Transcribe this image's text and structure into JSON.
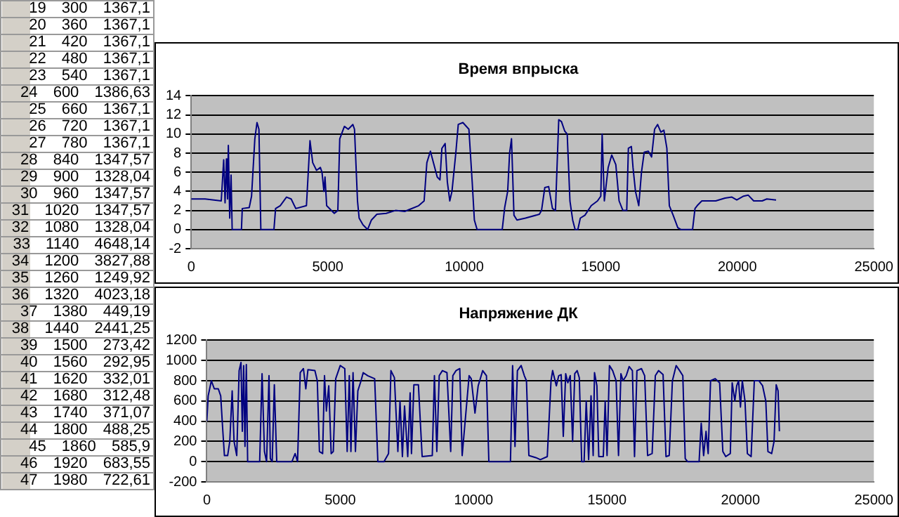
{
  "chart_data": [
    {
      "type": "line",
      "title": "Время впрыска",
      "xlim": [
        0,
        25000
      ],
      "xticks": [
        0,
        5000,
        10000,
        15000,
        20000,
        25000
      ],
      "ylim": [
        -2,
        14
      ],
      "yticks": [
        -2,
        0,
        2,
        4,
        6,
        8,
        10,
        12,
        14
      ],
      "grid": "y",
      "legend": false,
      "marker": "none",
      "line_style": "solid",
      "series": [
        {
          "color": "#000080",
          "x": [
            0,
            510,
            1100,
            1190,
            1240,
            1290,
            1330,
            1360,
            1410,
            1460,
            1500,
            1560,
            1840,
            1870,
            2125,
            2210,
            2330,
            2410,
            2480,
            2550,
            3030,
            3090,
            3260,
            3490,
            3660,
            3830,
            4220,
            4350,
            4450,
            4590,
            4730,
            4790,
            4860,
            4900,
            4960,
            5240,
            5370,
            5440,
            5610,
            5750,
            5920,
            5980,
            6090,
            6150,
            6290,
            6460,
            6600,
            6800,
            7140,
            7480,
            7820,
            7990,
            8330,
            8530,
            8630,
            8760,
            8870,
            9010,
            9110,
            9180,
            9300,
            9380,
            9470,
            9550,
            9690,
            9780,
            9950,
            10170,
            10290,
            10370,
            10470,
            11390,
            11480,
            11590,
            11660,
            11730,
            11820,
            11930,
            12240,
            12750,
            12830,
            12950,
            13090,
            13230,
            13340,
            13460,
            13560,
            13680,
            13770,
            13870,
            13970,
            14060,
            14160,
            14250,
            14420,
            14650,
            14880,
            15000,
            15050,
            15130,
            15270,
            15400,
            15550,
            15670,
            15810,
            15950,
            16010,
            16120,
            16180,
            16270,
            16390,
            16490,
            16590,
            16740,
            16860,
            16970,
            17080,
            17200,
            17310,
            17420,
            17510,
            17650,
            17820,
            17940,
            18360,
            18450,
            18530,
            18700,
            19210,
            19550,
            19800,
            19980,
            20230,
            20400,
            20600,
            20910,
            21080,
            21420
          ],
          "values": [
            3.2,
            3.2,
            3,
            7.3,
            2.8,
            7.4,
            3.2,
            8.8,
            1.2,
            5.7,
            0,
            0,
            0,
            2.2,
            2.3,
            3.5,
            9.5,
            11.2,
            10.5,
            0,
            0,
            2.2,
            2.5,
            3.4,
            3.2,
            2.2,
            2.5,
            9.3,
            7,
            6.2,
            6.5,
            6,
            4,
            5.5,
            2.5,
            1.7,
            2,
            9.5,
            10.8,
            10.5,
            11,
            10.5,
            3,
            1.2,
            0.5,
            0,
            1,
            1.6,
            1.7,
            2,
            1.9,
            2.1,
            2.5,
            3,
            7,
            8.2,
            7,
            5.5,
            5.2,
            8.5,
            9,
            5,
            3,
            4,
            8,
            11,
            11.2,
            10.5,
            5,
            1,
            0,
            0,
            2.3,
            4,
            8,
            9.5,
            1.5,
            1,
            1.2,
            1.6,
            2,
            4.4,
            4.5,
            2.2,
            2,
            11.5,
            11.3,
            10.3,
            10,
            3,
            1,
            0,
            0,
            1.2,
            1.5,
            2.5,
            3,
            3.5,
            10,
            3,
            6.5,
            7.8,
            6.8,
            3,
            2,
            2,
            8.5,
            8.7,
            6.5,
            4,
            2.5,
            6,
            8.1,
            8.2,
            7.6,
            10.5,
            11,
            10.2,
            10.4,
            8.5,
            2.5,
            1.5,
            0.2,
            0,
            0,
            2.2,
            2.5,
            3,
            3,
            3.3,
            3.4,
            3.1,
            3.5,
            3.6,
            3,
            3,
            3.2,
            3.1
          ]
        }
      ]
    },
    {
      "type": "line",
      "title": "Напряжение ДК",
      "xlim": [
        0,
        25000
      ],
      "xticks": [
        0,
        5000,
        10000,
        15000,
        20000,
        25000
      ],
      "ylim": [
        -200,
        1200
      ],
      "yticks": [
        -200,
        0,
        200,
        400,
        600,
        800,
        1000,
        1200
      ],
      "grid": "y",
      "legend": false,
      "marker": "none",
      "line_style": "solid",
      "series": [
        {
          "color": "#000080",
          "x": [
            0,
            50,
            170,
            280,
            430,
            520,
            600,
            660,
            780,
            860,
            950,
            1020,
            1120,
            1210,
            1280,
            1330,
            1380,
            1430,
            1480,
            1530,
            1640,
            1980,
            2070,
            2160,
            2240,
            2330,
            2380,
            2450,
            2530,
            2620,
            3190,
            3310,
            3400,
            3500,
            3620,
            3710,
            3790,
            4050,
            4140,
            4220,
            4340,
            4410,
            4480,
            4570,
            4660,
            4740,
            4830,
            5000,
            5170,
            5260,
            5340,
            5400,
            5480,
            5570,
            5660,
            5780,
            5860,
            6030,
            6290,
            6410,
            6640,
            6810,
            6900,
            7030,
            7160,
            7240,
            7330,
            7410,
            7530,
            7620,
            7670,
            7760,
            7930,
            8070,
            8450,
            8530,
            8620,
            8710,
            8830,
            9000,
            9140,
            9220,
            9340,
            9480,
            9570,
            9830,
            9910,
            10050,
            10170,
            10340,
            10480,
            10570,
            10690,
            11380,
            11460,
            11550,
            11640,
            11780,
            11900,
            11980,
            12070,
            12330,
            12500,
            12760,
            12900,
            12960,
            13100,
            13190,
            13280,
            13360,
            13450,
            13530,
            13620,
            13710,
            13790,
            13880,
            13960,
            14050,
            14140,
            14220,
            14310,
            14400,
            14480,
            14530,
            14620,
            14690,
            14860,
            14930,
            15000,
            15090,
            15210,
            15340,
            15430,
            15520,
            15600,
            15720,
            15830,
            15950,
            16030,
            16120,
            16290,
            16410,
            16520,
            16690,
            16810,
            16930,
            17100,
            17210,
            17330,
            17450,
            17590,
            17720,
            17840,
            17930,
            18020,
            18450,
            18530,
            18620,
            18710,
            18790,
            18880,
            19050,
            19220,
            19340,
            19450,
            19620,
            19690,
            19790,
            19860,
            19930,
            20000,
            20070,
            20170,
            20260,
            20400,
            20520,
            20690,
            20830,
            20950,
            21030,
            21170,
            21260,
            21340,
            21410,
            21460
          ],
          "values": [
            400,
            650,
            800,
            720,
            720,
            650,
            300,
            60,
            60,
            200,
            700,
            200,
            60,
            900,
            980,
            300,
            950,
            150,
            960,
            0,
            0,
            0,
            870,
            100,
            0,
            850,
            30,
            0,
            760,
            0,
            0,
            80,
            0,
            880,
            920,
            720,
            910,
            900,
            800,
            100,
            80,
            850,
            500,
            750,
            80,
            100,
            820,
            950,
            920,
            100,
            850,
            100,
            880,
            100,
            700,
            800,
            880,
            850,
            820,
            0,
            0,
            80,
            900,
            830,
            100,
            600,
            50,
            550,
            50,
            680,
            80,
            760,
            760,
            50,
            60,
            850,
            100,
            850,
            900,
            880,
            100,
            850,
            900,
            920,
            60,
            850,
            820,
            480,
            750,
            900,
            850,
            0,
            0,
            0,
            950,
            150,
            900,
            950,
            850,
            800,
            60,
            40,
            20,
            50,
            800,
            900,
            750,
            850,
            860,
            250,
            870,
            780,
            850,
            200,
            870,
            900,
            830,
            0,
            0,
            600,
            20,
            650,
            60,
            880,
            750,
            50,
            50,
            600,
            60,
            950,
            900,
            800,
            60,
            870,
            800,
            850,
            940,
            900,
            50,
            900,
            920,
            850,
            60,
            80,
            850,
            900,
            860,
            50,
            60,
            800,
            950,
            900,
            850,
            30,
            0,
            0,
            380,
            60,
            300,
            80,
            800,
            820,
            780,
            100,
            50,
            80,
            780,
            600,
            750,
            800,
            540,
            800,
            600,
            80,
            50,
            800,
            800,
            750,
            600,
            100,
            80,
            200,
            760,
            700,
            300
          ]
        }
      ]
    },
    {
      "type": "other",
      "annotations": [
        "19 300 1367,1",
        "20 360 1367,1",
        "21 420 1367,1",
        "22 480 1367,1",
        "23 540 1367,1",
        "24 600 1386,63",
        "25 660 1367,1",
        "26 720 1367,1",
        "27 780 1367,1",
        "28 840 1347,57",
        "29 900 1328,04",
        "30 960 1347,57",
        "31 1020 1347,57",
        "32 1080 1328,04",
        "33 1140 4648,14",
        "34 1200 3827,88",
        "35 1260 1249,92",
        "36 1320 4023,18",
        "37 1380 449,19",
        "38 1440 2441,25",
        "39 1500 273,42",
        "40 1560 292,95",
        "41 1620 332,01",
        "42 1680 312,48",
        "43 1740 371,07",
        "44 1800 488,25",
        "45 1860 585,9",
        "46 1920 683,55",
        "47 1980 722,61"
      ]
    }
  ]
}
